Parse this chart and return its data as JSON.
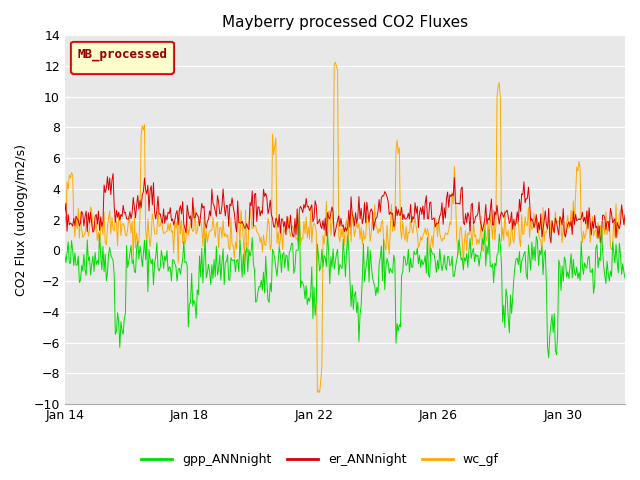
{
  "title": "Mayberry processed CO2 Fluxes",
  "ylabel": "CO2 Flux (urology/m2/s)",
  "ylim": [
    -10,
    14
  ],
  "yticks": [
    -10,
    -8,
    -6,
    -4,
    -2,
    0,
    2,
    4,
    6,
    8,
    10,
    12,
    14
  ],
  "xtick_labels": [
    "Jan 14",
    "Jan 18",
    "Jan 22",
    "Jan 26",
    "Jan 30"
  ],
  "xtick_offsets": [
    0,
    4,
    8,
    12,
    16
  ],
  "xlim": [
    0,
    18
  ],
  "gpp_color": "#00dd00",
  "er_color": "#dd0000",
  "wc_color": "#ffaa00",
  "plot_bg_color": "#e8e8e8",
  "fig_bg_color": "#ffffff",
  "grid_color": "#ffffff",
  "legend_box_label": "MB_processed",
  "legend_box_facecolor": "#ffffcc",
  "legend_box_edgecolor": "#cc0000",
  "legend_box_textcolor": "#990000",
  "n_points": 500,
  "seed": 42,
  "title_fontsize": 11,
  "axis_fontsize": 9,
  "tick_fontsize": 9
}
